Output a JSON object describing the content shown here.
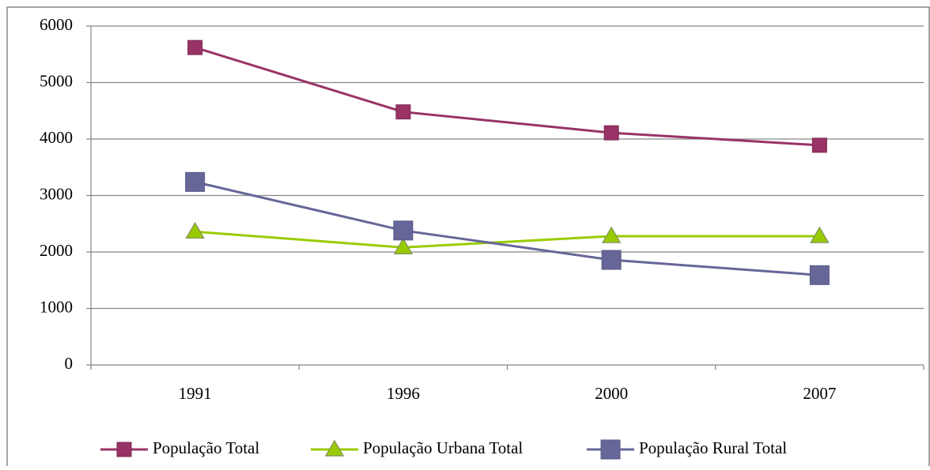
{
  "chart_data": {
    "type": "line",
    "categories": [
      "1991",
      "1996",
      "2000",
      "2007"
    ],
    "series": [
      {
        "name": "População Total",
        "color": "#993366",
        "marker": "square",
        "values": [
          5620,
          4480,
          4110,
          3890
        ]
      },
      {
        "name": "População Urbana Total",
        "color": "#99cc00",
        "marker": "triangle",
        "values": [
          2360,
          2080,
          2280,
          2280
        ]
      },
      {
        "name": "População Rural Total",
        "color": "#666699",
        "marker": "square-large",
        "values": [
          3240,
          2380,
          1860,
          1590
        ]
      }
    ],
    "ylim": [
      0,
      6000
    ],
    "yticks": [
      0,
      1000,
      2000,
      3000,
      4000,
      5000,
      6000
    ],
    "grid": true,
    "legend": "bottom"
  }
}
